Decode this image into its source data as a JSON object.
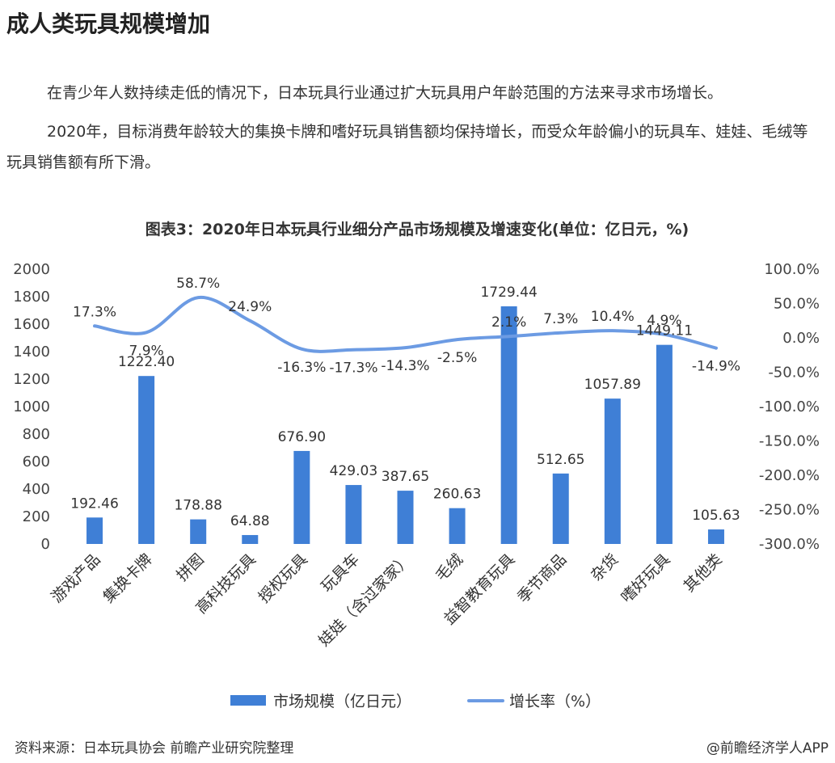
{
  "article": {
    "heading": "成人类玩具规模增加",
    "paragraphs": [
      "在青少年人数持续走低的情况下，日本玩具行业通过扩大玩具用户年龄范围的方法来寻求市场增长。",
      "2020年，目标消费年龄较大的集换卡牌和嗜好玩具销售额均保持增长，而受众年龄偏小的玩具车、娃娃、毛绒等玩具销售额有所下滑。"
    ]
  },
  "chart_data": {
    "type": "bar",
    "title": "图表3：2020年日本玩具行业细分产品市场规模及增速变化(单位：亿日元，%)",
    "categories": [
      "游戏产品",
      "集换卡牌",
      "拼图",
      "高科技玩具",
      "授权玩具",
      "玩具车",
      "娃娃（含过家家）",
      "毛绒",
      "益智教育玩具",
      "季节商品",
      "杂货",
      "嗜好玩具",
      "其他类"
    ],
    "series": [
      {
        "name": "市场规模（亿日元）",
        "type": "bar",
        "axis": "left",
        "values": [
          192.46,
          1222.4,
          178.88,
          64.88,
          676.9,
          429.03,
          387.65,
          260.63,
          1729.44,
          512.65,
          1057.89,
          1449.11,
          105.63
        ],
        "labels": [
          "192.46",
          "1222.40",
          "178.88",
          "64.88",
          "676.90",
          "429.03",
          "387.65",
          "260.63",
          "1729.44",
          "512.65",
          "1057.89",
          "1449.11",
          "105.63"
        ]
      },
      {
        "name": "增长率（%）",
        "type": "line",
        "axis": "right",
        "values": [
          17.3,
          7.9,
          58.7,
          24.9,
          -16.3,
          -17.3,
          -14.3,
          -2.5,
          2.1,
          7.3,
          10.4,
          4.9,
          -14.9
        ],
        "labels": [
          "17.3%",
          "7.9%",
          "58.7%",
          "24.9%",
          "-16.3%",
          "-17.3%",
          "-14.3%",
          "-2.5%",
          "2.1%",
          "7.3%",
          "10.4%",
          "4.9%",
          "-14.9%"
        ]
      }
    ],
    "left_axis": {
      "ylim": [
        0,
        2000
      ],
      "ticks": [
        "0",
        "200",
        "400",
        "600",
        "800",
        "1000",
        "1200",
        "1400",
        "1600",
        "1800",
        "2000"
      ]
    },
    "right_axis": {
      "ylim": [
        -300,
        100
      ],
      "ticks": [
        "-300.0%",
        "-250.0%",
        "-200.0%",
        "-150.0%",
        "-100.0%",
        "-50.0%",
        "0.0%",
        "50.0%",
        "100.0%"
      ]
    },
    "grid": false,
    "legend_position": "bottom",
    "colors": {
      "bar": "#3f7fd6",
      "line": "#6c9be3"
    }
  },
  "footer": {
    "source": "资料来源：日本玩具协会 前瞻产业研究院整理",
    "credit": "@前瞻经济学人APP"
  }
}
